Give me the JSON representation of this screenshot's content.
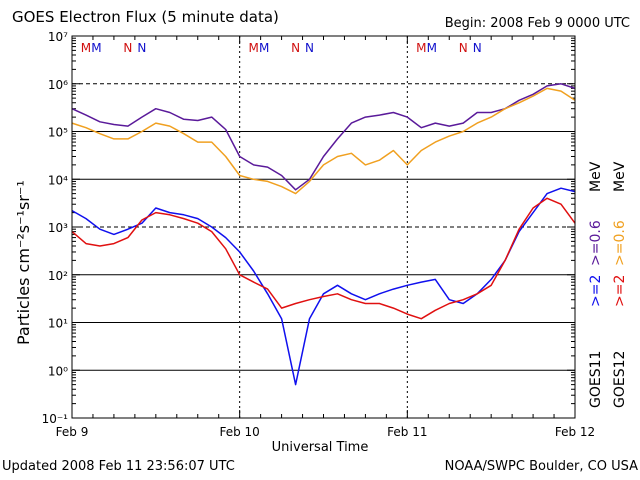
{
  "header": {
    "title": "GOES Electron Flux (5 minute data)",
    "begin": "Begin: 2008 Feb 9 0000 UTC"
  },
  "footer": {
    "updated": "Updated 2008 Feb 11 23:56:07 UTC",
    "credit": "NOAA/SWPC Boulder, CO USA"
  },
  "colors": {
    "goes11_2mev": "#1010ee",
    "goes11_06mev": "#5a1a9a",
    "goes12_2mev": "#e01010",
    "goes12_06mev": "#f0a020",
    "marker_m": "#d01010",
    "marker_n": "#1010cc"
  },
  "side_labels": {
    "g11_2": ">=2",
    "g11_06": ">=0.6",
    "g12_2": ">=2",
    "g12_06": ">=0.6",
    "mev1": "MeV",
    "mev2": "MeV",
    "goes11": "GOES11",
    "goes12": "GOES12"
  },
  "chart_data": {
    "type": "line",
    "title": "GOES Electron Flux (5 minute data)",
    "xlabel": "Universal Time",
    "ylabel": "Particles cm⁻²s⁻¹sr⁻¹",
    "y_scale": "log",
    "ylim": [
      0.1,
      10000000
    ],
    "y_ticks": [
      "10⁻¹",
      "10⁰",
      "10¹",
      "10²",
      "10³",
      "10⁴",
      "10⁵",
      "10⁶",
      "10⁷"
    ],
    "x_ticks": [
      "Feb 9",
      "Feb 10",
      "Feb 11",
      "Feb 12"
    ],
    "x_unit": "hours since 2008 Feb 9 0000 UTC",
    "xlim": [
      0,
      72
    ],
    "grid": "solid lines at each decade",
    "reference_lines": [
      {
        "y": 1000,
        "style": "dashed"
      },
      {
        "y": 1000000,
        "style": "dashed"
      }
    ],
    "markers": [
      {
        "x": 2.0,
        "label": "M",
        "color": "#d01010"
      },
      {
        "x": 3.5,
        "label": "M",
        "color": "#1010cc"
      },
      {
        "x": 8.0,
        "label": "N",
        "color": "#d01010"
      },
      {
        "x": 10.0,
        "label": "N",
        "color": "#1010cc"
      },
      {
        "x": 26.0,
        "label": "M",
        "color": "#d01010"
      },
      {
        "x": 27.5,
        "label": "M",
        "color": "#1010cc"
      },
      {
        "x": 32.0,
        "label": "N",
        "color": "#d01010"
      },
      {
        "x": 34.0,
        "label": "N",
        "color": "#1010cc"
      },
      {
        "x": 50.0,
        "label": "M",
        "color": "#d01010"
      },
      {
        "x": 51.5,
        "label": "M",
        "color": "#1010cc"
      },
      {
        "x": 56.0,
        "label": "N",
        "color": "#d01010"
      },
      {
        "x": 58.0,
        "label": "N",
        "color": "#1010cc"
      }
    ],
    "series": [
      {
        "name": "GOES11 >=0.6 MeV",
        "color": "#5a1a9a",
        "x": [
          0,
          2,
          4,
          6,
          8,
          10,
          12,
          14,
          16,
          18,
          20,
          22,
          24,
          26,
          28,
          30,
          32,
          34,
          36,
          38,
          40,
          42,
          44,
          46,
          48,
          50,
          52,
          54,
          56,
          58,
          60,
          62,
          64,
          66,
          68,
          70,
          72
        ],
        "y": [
          300000,
          220000,
          160000,
          140000,
          130000,
          200000,
          300000,
          250000,
          180000,
          170000,
          200000,
          110000,
          30000,
          20000,
          18000,
          12000,
          6000,
          10000,
          30000,
          70000,
          150000,
          200000,
          220000,
          250000,
          200000,
          120000,
          150000,
          130000,
          150000,
          250000,
          250000,
          300000,
          450000,
          600000,
          900000,
          1000000,
          800000
        ]
      },
      {
        "name": "GOES12 >=0.6 MeV",
        "color": "#f0a020",
        "x": [
          0,
          2,
          4,
          6,
          8,
          10,
          12,
          14,
          16,
          18,
          20,
          22,
          24,
          26,
          28,
          30,
          32,
          34,
          36,
          38,
          40,
          42,
          44,
          46,
          48,
          50,
          52,
          54,
          56,
          58,
          60,
          62,
          64,
          66,
          68,
          70,
          72
        ],
        "y": [
          150000,
          120000,
          90000,
          70000,
          70000,
          100000,
          150000,
          130000,
          90000,
          60000,
          60000,
          30000,
          12000,
          10000,
          9000,
          7000,
          5000,
          9000,
          20000,
          30000,
          35000,
          20000,
          25000,
          40000,
          20000,
          40000,
          60000,
          80000,
          100000,
          150000,
          200000,
          300000,
          400000,
          550000,
          800000,
          700000,
          450000
        ]
      },
      {
        "name": "GOES11 >=2 MeV",
        "color": "#1010ee",
        "x": [
          0,
          2,
          4,
          6,
          8,
          10,
          12,
          14,
          16,
          18,
          20,
          22,
          24,
          26,
          28,
          30,
          32,
          34,
          36,
          38,
          40,
          42,
          44,
          46,
          48,
          50,
          52,
          54,
          56,
          58,
          60,
          62,
          64,
          66,
          68,
          70,
          72
        ],
        "y": [
          2200,
          1500,
          900,
          700,
          900,
          1200,
          2500,
          2000,
          1800,
          1500,
          1000,
          600,
          300,
          120,
          40,
          12,
          0.5,
          12,
          40,
          60,
          40,
          30,
          40,
          50,
          60,
          70,
          80,
          30,
          25,
          40,
          80,
          200,
          800,
          2000,
          5000,
          6500,
          5500
        ]
      },
      {
        "name": "GOES12 >=2 MeV",
        "color": "#e01010",
        "x": [
          0,
          2,
          4,
          6,
          8,
          10,
          12,
          14,
          16,
          18,
          20,
          22,
          24,
          26,
          28,
          30,
          32,
          34,
          36,
          38,
          40,
          42,
          44,
          46,
          48,
          50,
          52,
          54,
          56,
          58,
          60,
          62,
          64,
          66,
          68,
          70,
          72
        ],
        "y": [
          800,
          450,
          400,
          450,
          600,
          1400,
          2000,
          1800,
          1500,
          1200,
          800,
          350,
          100,
          70,
          50,
          20,
          25,
          30,
          35,
          40,
          30,
          25,
          25,
          20,
          15,
          12,
          18,
          25,
          30,
          40,
          60,
          200,
          900,
          2500,
          4000,
          3000,
          1200
        ]
      }
    ]
  }
}
